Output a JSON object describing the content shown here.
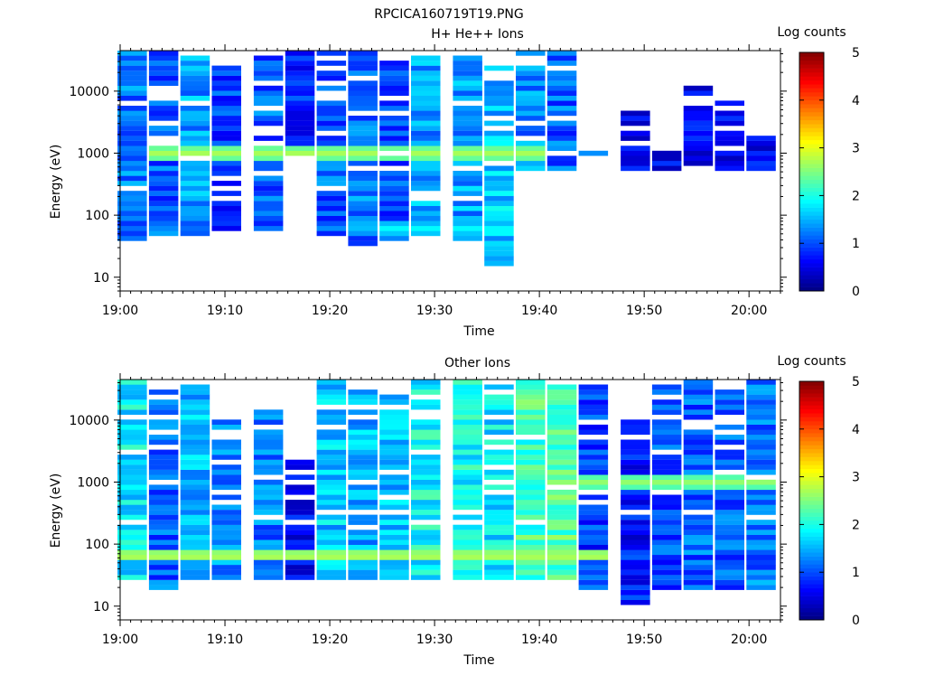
{
  "figure_title": "RPCICA160719T19.PNG",
  "chart_data": [
    {
      "type": "heatmap",
      "title": "H+ He++ Ions",
      "xlabel": "Time",
      "ylabel": "Energy (eV)",
      "x_range": [
        "19:00",
        "20:03"
      ],
      "x_ticks": [
        "19:00",
        "19:10",
        "19:20",
        "19:30",
        "19:40",
        "19:50",
        "20:00"
      ],
      "y_scale": "log",
      "y_range": [
        6,
        45000
      ],
      "y_ticks": [
        "10",
        "100",
        "1000",
        "10000"
      ],
      "colorbar": {
        "label": "Log counts",
        "min": 0,
        "max": 5,
        "ticks": [
          "0",
          "1",
          "2",
          "3",
          "4",
          "5"
        ]
      },
      "time_bins": [
        "19:01",
        "19:04",
        "19:07",
        "19:10",
        "19:14",
        "19:17",
        "19:20",
        "19:23",
        "19:26",
        "19:29",
        "19:33",
        "19:36",
        "19:39",
        "19:42",
        "19:45",
        "19:49",
        "19:52",
        "19:55",
        "19:58",
        "20:01"
      ],
      "bin_ranges": [
        [
          40,
          40000
        ],
        [
          55,
          40000
        ],
        [
          50,
          35000
        ],
        [
          60,
          25000
        ],
        [
          60,
          35000
        ],
        [
          1000,
          40000
        ],
        [
          55,
          40000
        ],
        [
          35,
          40000
        ],
        [
          45,
          30000
        ],
        [
          50,
          35000
        ],
        [
          45,
          40000
        ],
        [
          18,
          25000
        ],
        [
          550,
          40000
        ],
        [
          550,
          40000
        ],
        [
          950,
          1000
        ],
        [
          550,
          4500
        ],
        [
          550,
          1050
        ],
        [
          550,
          12000
        ],
        [
          550,
          6500
        ],
        [
          550,
          2000
        ]
      ],
      "bin_levels": [
        1.2,
        1.1,
        1.4,
        0.9,
        1.1,
        0.8,
        1.1,
        1.2,
        1.0,
        1.4,
        1.4,
        1.6,
        1.3,
        1.1,
        1.0,
        0.5,
        0.5,
        0.5,
        0.5,
        0.6
      ],
      "features": [
        {
          "label": "~1000 eV band",
          "energy": 1000,
          "time_range": [
            "19:04",
            "19:40"
          ],
          "level": 2.7
        },
        {
          "label": "~60 eV band",
          "energy": 60,
          "time_range": [
            "19:26",
            "19:40"
          ],
          "level": 1.9
        }
      ]
    },
    {
      "type": "heatmap",
      "title": "Other Ions",
      "xlabel": "Time",
      "ylabel": "Energy (eV)",
      "x_range": [
        "19:00",
        "20:03"
      ],
      "x_ticks": [
        "19:00",
        "19:10",
        "19:20",
        "19:30",
        "19:40",
        "19:50",
        "20:00"
      ],
      "y_scale": "log",
      "y_range": [
        6,
        45000
      ],
      "y_ticks": [
        "10",
        "100",
        "1000",
        "10000"
      ],
      "colorbar": {
        "label": "Log counts",
        "min": 0,
        "max": 5,
        "ticks": [
          "0",
          "1",
          "2",
          "3",
          "4",
          "5"
        ]
      },
      "time_bins": [
        "19:01",
        "19:04",
        "19:07",
        "19:10",
        "19:14",
        "19:17",
        "19:20",
        "19:23",
        "19:26",
        "19:29",
        "19:33",
        "19:36",
        "19:39",
        "19:42",
        "19:45",
        "19:49",
        "19:52",
        "19:55",
        "19:58",
        "20:01"
      ],
      "bin_ranges": [
        [
          28,
          40000
        ],
        [
          22,
          30000
        ],
        [
          28,
          35000
        ],
        [
          28,
          9000
        ],
        [
          28,
          14000
        ],
        [
          28,
          2000
        ],
        [
          28,
          40000
        ],
        [
          28,
          35000
        ],
        [
          28,
          25000
        ],
        [
          28,
          40000
        ],
        [
          28,
          40000
        ],
        [
          28,
          40000
        ],
        [
          28,
          40000
        ],
        [
          28,
          40000
        ],
        [
          22,
          40000
        ],
        [
          11,
          9000
        ],
        [
          22,
          40000
        ],
        [
          22,
          40000
        ],
        [
          22,
          30000
        ],
        [
          22,
          40000
        ]
      ],
      "bin_levels": [
        1.8,
        1.1,
        1.5,
        1.3,
        1.2,
        0.6,
        1.6,
        1.5,
        1.6,
        1.9,
        1.9,
        1.8,
        2.2,
        2.3,
        0.9,
        0.7,
        1.0,
        1.1,
        1.1,
        1.2
      ],
      "features": [
        {
          "label": "~65 eV band",
          "energy": 65,
          "time_range": [
            "19:01",
            "19:46"
          ],
          "level": 2.8
        },
        {
          "label": "~1000 eV band",
          "energy": 1000,
          "time_range": [
            "19:40",
            "20:03"
          ],
          "level": 2.6
        }
      ]
    }
  ]
}
